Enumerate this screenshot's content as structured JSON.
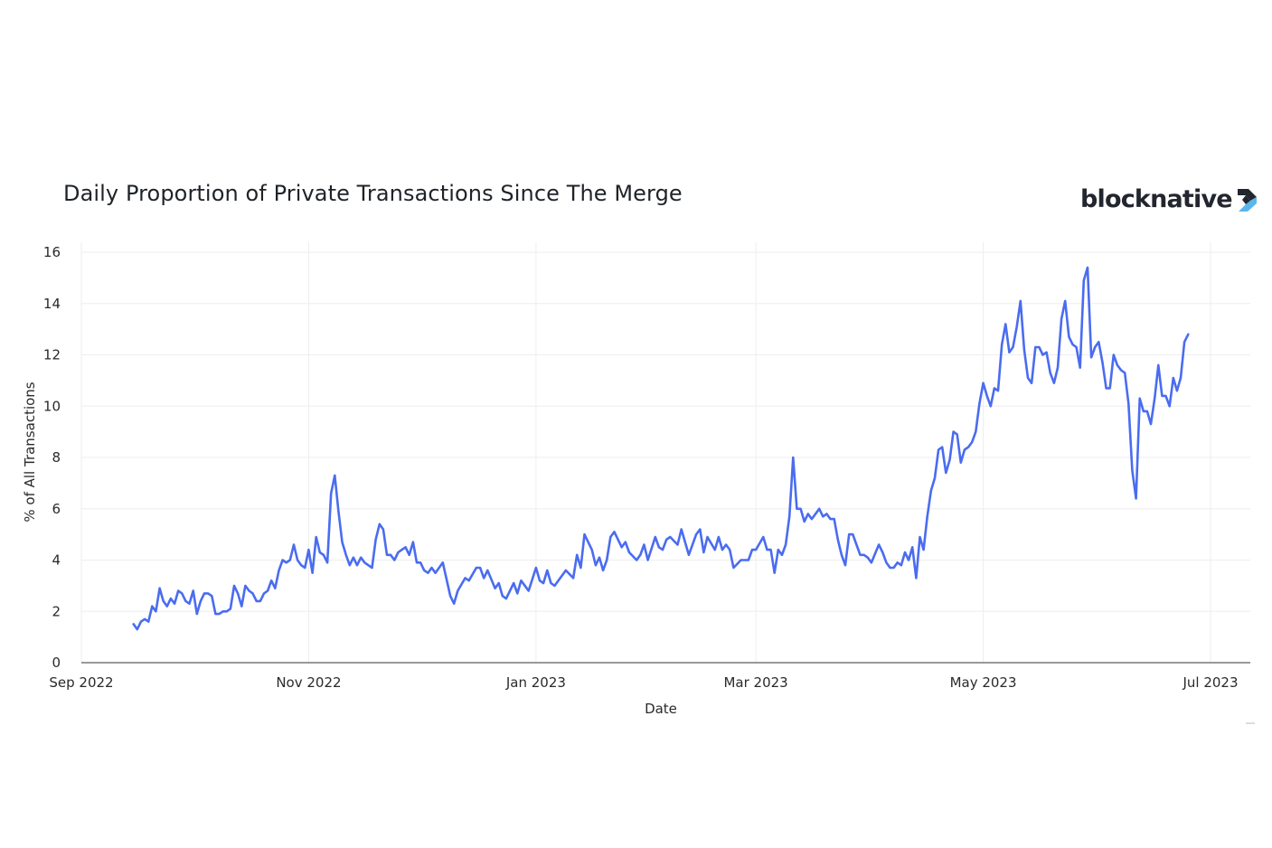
{
  "title": "Daily Proportion of Private Transactions Since The Merge",
  "logo": {
    "text": "blocknative",
    "colors": {
      "text": "#22262e",
      "dark": "#22262e",
      "light": "#5bb6ec"
    }
  },
  "chart_data": {
    "type": "line",
    "title": "Daily Proportion of Private Transactions Since The Merge",
    "xlabel": "Date",
    "ylabel": "% of All Transactions",
    "xlim": [
      "2022-09-01",
      "2023-07-01"
    ],
    "ylim": [
      0,
      16
    ],
    "yticks": [
      0,
      2,
      4,
      6,
      8,
      10,
      12,
      14,
      16
    ],
    "xticks": [
      {
        "date": "2022-09-01",
        "label": "Sep 2022"
      },
      {
        "date": "2022-11-01",
        "label": "Nov 2022"
      },
      {
        "date": "2023-01-01",
        "label": "Jan 2023"
      },
      {
        "date": "2023-03-01",
        "label": "Mar 2023"
      },
      {
        "date": "2023-05-01",
        "label": "May 2023"
      },
      {
        "date": "2023-07-01",
        "label": "Jul 2023"
      }
    ],
    "grid": true,
    "legend": "none",
    "line_color": "#4a6cf0",
    "points": [
      [
        "2022-09-15",
        1.5
      ],
      [
        "2022-09-16",
        1.3
      ],
      [
        "2022-09-17",
        1.6
      ],
      [
        "2022-09-18",
        1.7
      ],
      [
        "2022-09-19",
        1.6
      ],
      [
        "2022-09-20",
        2.2
      ],
      [
        "2022-09-21",
        2.0
      ],
      [
        "2022-09-22",
        2.9
      ],
      [
        "2022-09-23",
        2.4
      ],
      [
        "2022-09-24",
        2.2
      ],
      [
        "2022-09-25",
        2.5
      ],
      [
        "2022-09-26",
        2.3
      ],
      [
        "2022-09-27",
        2.8
      ],
      [
        "2022-09-28",
        2.7
      ],
      [
        "2022-09-29",
        2.4
      ],
      [
        "2022-09-30",
        2.3
      ],
      [
        "2022-10-01",
        2.8
      ],
      [
        "2022-10-02",
        1.9
      ],
      [
        "2022-10-03",
        2.4
      ],
      [
        "2022-10-04",
        2.7
      ],
      [
        "2022-10-05",
        2.7
      ],
      [
        "2022-10-06",
        2.6
      ],
      [
        "2022-10-07",
        1.9
      ],
      [
        "2022-10-08",
        1.9
      ],
      [
        "2022-10-09",
        2.0
      ],
      [
        "2022-10-10",
        2.0
      ],
      [
        "2022-10-11",
        2.1
      ],
      [
        "2022-10-12",
        3.0
      ],
      [
        "2022-10-13",
        2.7
      ],
      [
        "2022-10-14",
        2.2
      ],
      [
        "2022-10-15",
        3.0
      ],
      [
        "2022-10-16",
        2.8
      ],
      [
        "2022-10-17",
        2.7
      ],
      [
        "2022-10-18",
        2.4
      ],
      [
        "2022-10-19",
        2.4
      ],
      [
        "2022-10-20",
        2.7
      ],
      [
        "2022-10-21",
        2.8
      ],
      [
        "2022-10-22",
        3.2
      ],
      [
        "2022-10-23",
        2.9
      ],
      [
        "2022-10-24",
        3.6
      ],
      [
        "2022-10-25",
        4.0
      ],
      [
        "2022-10-26",
        3.9
      ],
      [
        "2022-10-27",
        4.0
      ],
      [
        "2022-10-28",
        4.6
      ],
      [
        "2022-10-29",
        4.0
      ],
      [
        "2022-10-30",
        3.8
      ],
      [
        "2022-10-31",
        3.7
      ],
      [
        "2022-11-01",
        4.4
      ],
      [
        "2022-11-02",
        3.5
      ],
      [
        "2022-11-03",
        4.9
      ],
      [
        "2022-11-04",
        4.3
      ],
      [
        "2022-11-05",
        4.2
      ],
      [
        "2022-11-06",
        3.9
      ],
      [
        "2022-11-07",
        6.6
      ],
      [
        "2022-11-08",
        7.3
      ],
      [
        "2022-11-09",
        5.9
      ],
      [
        "2022-11-10",
        4.7
      ],
      [
        "2022-11-11",
        4.2
      ],
      [
        "2022-11-12",
        3.8
      ],
      [
        "2022-11-13",
        4.1
      ],
      [
        "2022-11-14",
        3.8
      ],
      [
        "2022-11-15",
        4.1
      ],
      [
        "2022-11-16",
        3.9
      ],
      [
        "2022-11-17",
        3.8
      ],
      [
        "2022-11-18",
        3.7
      ],
      [
        "2022-11-19",
        4.8
      ],
      [
        "2022-11-20",
        5.4
      ],
      [
        "2022-11-21",
        5.2
      ],
      [
        "2022-11-22",
        4.2
      ],
      [
        "2022-11-23",
        4.2
      ],
      [
        "2022-11-24",
        4.0
      ],
      [
        "2022-11-25",
        4.3
      ],
      [
        "2022-11-26",
        4.4
      ],
      [
        "2022-11-27",
        4.5
      ],
      [
        "2022-11-28",
        4.2
      ],
      [
        "2022-11-29",
        4.7
      ],
      [
        "2022-11-30",
        3.9
      ],
      [
        "2022-12-01",
        3.9
      ],
      [
        "2022-12-02",
        3.6
      ],
      [
        "2022-12-03",
        3.5
      ],
      [
        "2022-12-04",
        3.7
      ],
      [
        "2022-12-05",
        3.5
      ],
      [
        "2022-12-06",
        3.7
      ],
      [
        "2022-12-07",
        3.9
      ],
      [
        "2022-12-09",
        2.6
      ],
      [
        "2022-12-10",
        2.3
      ],
      [
        "2022-12-11",
        2.8
      ],
      [
        "2022-12-13",
        3.3
      ],
      [
        "2022-12-14",
        3.2
      ],
      [
        "2022-12-16",
        3.7
      ],
      [
        "2022-12-17",
        3.7
      ],
      [
        "2022-12-18",
        3.3
      ],
      [
        "2022-12-19",
        3.6
      ],
      [
        "2022-12-21",
        2.9
      ],
      [
        "2022-12-22",
        3.1
      ],
      [
        "2022-12-23",
        2.6
      ],
      [
        "2022-12-24",
        2.5
      ],
      [
        "2022-12-26",
        3.1
      ],
      [
        "2022-12-27",
        2.7
      ],
      [
        "2022-12-28",
        3.2
      ],
      [
        "2022-12-30",
        2.8
      ],
      [
        "2023-01-01",
        3.7
      ],
      [
        "2023-01-02",
        3.2
      ],
      [
        "2023-01-03",
        3.1
      ],
      [
        "2023-01-04",
        3.6
      ],
      [
        "2023-01-05",
        3.1
      ],
      [
        "2023-01-06",
        3.0
      ],
      [
        "2023-01-08",
        3.4
      ],
      [
        "2023-01-09",
        3.6
      ],
      [
        "2023-01-11",
        3.3
      ],
      [
        "2023-01-12",
        4.2
      ],
      [
        "2023-01-13",
        3.7
      ],
      [
        "2023-01-14",
        5.0
      ],
      [
        "2023-01-16",
        4.4
      ],
      [
        "2023-01-17",
        3.8
      ],
      [
        "2023-01-18",
        4.1
      ],
      [
        "2023-01-19",
        3.6
      ],
      [
        "2023-01-20",
        4.0
      ],
      [
        "2023-01-21",
        4.9
      ],
      [
        "2023-01-22",
        5.1
      ],
      [
        "2023-01-24",
        4.5
      ],
      [
        "2023-01-25",
        4.7
      ],
      [
        "2023-01-26",
        4.3
      ],
      [
        "2023-01-28",
        4.0
      ],
      [
        "2023-01-29",
        4.2
      ],
      [
        "2023-01-30",
        4.6
      ],
      [
        "2023-01-31",
        4.0
      ],
      [
        "2023-02-02",
        4.9
      ],
      [
        "2023-02-03",
        4.5
      ],
      [
        "2023-02-04",
        4.4
      ],
      [
        "2023-02-05",
        4.8
      ],
      [
        "2023-02-06",
        4.9
      ],
      [
        "2023-02-08",
        4.6
      ],
      [
        "2023-02-09",
        5.2
      ],
      [
        "2023-02-11",
        4.2
      ],
      [
        "2023-02-13",
        5.0
      ],
      [
        "2023-02-14",
        5.2
      ],
      [
        "2023-02-15",
        4.3
      ],
      [
        "2023-02-16",
        4.9
      ],
      [
        "2023-02-18",
        4.4
      ],
      [
        "2023-02-19",
        4.9
      ],
      [
        "2023-02-20",
        4.4
      ],
      [
        "2023-02-21",
        4.6
      ],
      [
        "2023-02-22",
        4.4
      ],
      [
        "2023-02-23",
        3.7
      ],
      [
        "2023-02-25",
        4.0
      ],
      [
        "2023-02-27",
        4.0
      ],
      [
        "2023-02-28",
        4.4
      ],
      [
        "2023-03-01",
        4.4
      ],
      [
        "2023-03-03",
        4.9
      ],
      [
        "2023-03-04",
        4.4
      ],
      [
        "2023-03-05",
        4.4
      ],
      [
        "2023-03-06",
        3.5
      ],
      [
        "2023-03-07",
        4.4
      ],
      [
        "2023-03-08",
        4.2
      ],
      [
        "2023-03-09",
        4.6
      ],
      [
        "2023-03-10",
        5.7
      ],
      [
        "2023-03-11",
        8.0
      ],
      [
        "2023-03-12",
        6.0
      ],
      [
        "2023-03-13",
        6.0
      ],
      [
        "2023-03-14",
        5.5
      ],
      [
        "2023-03-15",
        5.8
      ],
      [
        "2023-03-16",
        5.6
      ],
      [
        "2023-03-18",
        6.0
      ],
      [
        "2023-03-19",
        5.7
      ],
      [
        "2023-03-20",
        5.8
      ],
      [
        "2023-03-21",
        5.6
      ],
      [
        "2023-03-22",
        5.6
      ],
      [
        "2023-03-23",
        4.8
      ],
      [
        "2023-03-24",
        4.2
      ],
      [
        "2023-03-25",
        3.8
      ],
      [
        "2023-03-26",
        5.0
      ],
      [
        "2023-03-27",
        5.0
      ],
      [
        "2023-03-28",
        4.6
      ],
      [
        "2023-03-29",
        4.2
      ],
      [
        "2023-03-30",
        4.2
      ],
      [
        "2023-03-31",
        4.1
      ],
      [
        "2023-04-01",
        3.9
      ],
      [
        "2023-04-03",
        4.6
      ],
      [
        "2023-04-04",
        4.3
      ],
      [
        "2023-04-05",
        3.9
      ],
      [
        "2023-04-06",
        3.7
      ],
      [
        "2023-04-07",
        3.7
      ],
      [
        "2023-04-08",
        3.9
      ],
      [
        "2023-04-09",
        3.8
      ],
      [
        "2023-04-10",
        4.3
      ],
      [
        "2023-04-11",
        4.0
      ],
      [
        "2023-04-12",
        4.5
      ],
      [
        "2023-04-13",
        3.3
      ],
      [
        "2023-04-14",
        4.9
      ],
      [
        "2023-04-15",
        4.4
      ],
      [
        "2023-04-16",
        5.7
      ],
      [
        "2023-04-17",
        6.7
      ],
      [
        "2023-04-18",
        7.2
      ],
      [
        "2023-04-19",
        8.3
      ],
      [
        "2023-04-20",
        8.4
      ],
      [
        "2023-04-21",
        7.4
      ],
      [
        "2023-04-22",
        7.9
      ],
      [
        "2023-04-23",
        9.0
      ],
      [
        "2023-04-24",
        8.9
      ],
      [
        "2023-04-25",
        7.8
      ],
      [
        "2023-04-26",
        8.3
      ],
      [
        "2023-04-27",
        8.4
      ],
      [
        "2023-04-28",
        8.6
      ],
      [
        "2023-04-29",
        9.0
      ],
      [
        "2023-04-30",
        10.1
      ],
      [
        "2023-05-01",
        10.9
      ],
      [
        "2023-05-02",
        10.4
      ],
      [
        "2023-05-03",
        10.0
      ],
      [
        "2023-05-04",
        10.7
      ],
      [
        "2023-05-05",
        10.6
      ],
      [
        "2023-05-06",
        12.4
      ],
      [
        "2023-05-07",
        13.2
      ],
      [
        "2023-05-08",
        12.1
      ],
      [
        "2023-05-09",
        12.3
      ],
      [
        "2023-05-10",
        13.1
      ],
      [
        "2023-05-11",
        14.1
      ],
      [
        "2023-05-12",
        12.2
      ],
      [
        "2023-05-13",
        11.1
      ],
      [
        "2023-05-14",
        10.9
      ],
      [
        "2023-05-15",
        12.3
      ],
      [
        "2023-05-16",
        12.3
      ],
      [
        "2023-05-17",
        12.0
      ],
      [
        "2023-05-18",
        12.1
      ],
      [
        "2023-05-19",
        11.3
      ],
      [
        "2023-05-20",
        10.9
      ],
      [
        "2023-05-21",
        11.5
      ],
      [
        "2023-05-22",
        13.4
      ],
      [
        "2023-05-23",
        14.1
      ],
      [
        "2023-05-24",
        12.7
      ],
      [
        "2023-05-25",
        12.4
      ],
      [
        "2023-05-26",
        12.3
      ],
      [
        "2023-05-27",
        11.5
      ],
      [
        "2023-05-28",
        14.9
      ],
      [
        "2023-05-29",
        15.4
      ],
      [
        "2023-05-30",
        11.9
      ],
      [
        "2023-05-31",
        12.3
      ],
      [
        "2023-06-01",
        12.5
      ],
      [
        "2023-06-02",
        11.7
      ],
      [
        "2023-06-03",
        10.7
      ],
      [
        "2023-06-04",
        10.7
      ],
      [
        "2023-06-05",
        12.0
      ],
      [
        "2023-06-06",
        11.6
      ],
      [
        "2023-06-07",
        11.4
      ],
      [
        "2023-06-08",
        11.3
      ],
      [
        "2023-06-09",
        10.1
      ],
      [
        "2023-06-10",
        7.5
      ],
      [
        "2023-06-11",
        6.4
      ],
      [
        "2023-06-12",
        10.3
      ],
      [
        "2023-06-13",
        9.8
      ],
      [
        "2023-06-14",
        9.8
      ],
      [
        "2023-06-15",
        9.3
      ],
      [
        "2023-06-16",
        10.3
      ],
      [
        "2023-06-17",
        11.6
      ],
      [
        "2023-06-18",
        10.4
      ],
      [
        "2023-06-19",
        10.4
      ],
      [
        "2023-06-20",
        10.0
      ],
      [
        "2023-06-21",
        11.1
      ],
      [
        "2023-06-22",
        10.6
      ],
      [
        "2023-06-23",
        11.1
      ],
      [
        "2023-06-24",
        12.5
      ],
      [
        "2023-06-25",
        12.8
      ]
    ]
  }
}
